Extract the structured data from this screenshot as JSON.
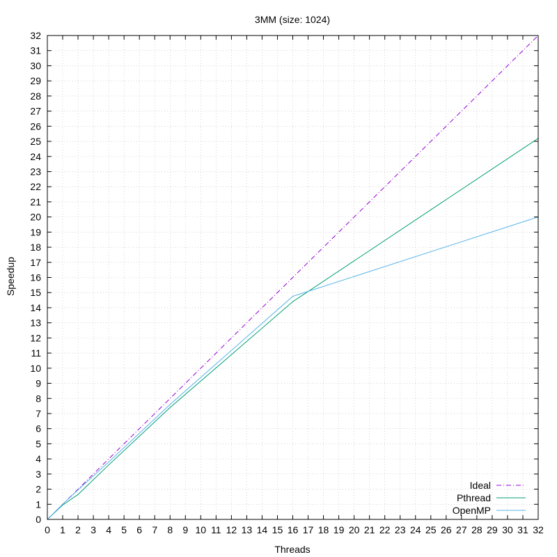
{
  "chart_data": {
    "type": "line",
    "title": "3MM (size: 1024)",
    "xlabel": "Threads",
    "ylabel": "Speedup",
    "xlim": [
      0,
      32
    ],
    "ylim": [
      0,
      32
    ],
    "xticks": [
      0,
      1,
      2,
      3,
      4,
      5,
      6,
      7,
      8,
      9,
      10,
      11,
      12,
      13,
      14,
      15,
      16,
      17,
      18,
      19,
      20,
      21,
      22,
      23,
      24,
      25,
      26,
      27,
      28,
      29,
      30,
      31,
      32
    ],
    "yticks": [
      0,
      1,
      2,
      3,
      4,
      5,
      6,
      7,
      8,
      9,
      10,
      11,
      12,
      13,
      14,
      15,
      16,
      17,
      18,
      19,
      20,
      21,
      22,
      23,
      24,
      25,
      26,
      27,
      28,
      29,
      30,
      31,
      32
    ],
    "grid": true,
    "legend_position": "bottom-right",
    "series": [
      {
        "name": "Ideal",
        "color": "#9400d3",
        "dash": "dash-dot",
        "x": [
          0,
          1,
          2,
          4,
          8,
          16,
          32
        ],
        "y": [
          0,
          1,
          2,
          4,
          8,
          16,
          32
        ]
      },
      {
        "name": "Pthread",
        "color": "#009e73",
        "dash": "solid",
        "x": [
          0,
          1,
          2,
          4,
          8,
          16,
          32
        ],
        "y": [
          0,
          0.95,
          1.65,
          3.6,
          7.4,
          14.4,
          25.2
        ]
      },
      {
        "name": "OpenMP",
        "color": "#56b4e9",
        "dash": "solid",
        "x": [
          0,
          1,
          2,
          4,
          8,
          16,
          32
        ],
        "y": [
          0,
          1.0,
          1.95,
          3.8,
          7.6,
          14.75,
          20.0
        ]
      }
    ]
  }
}
